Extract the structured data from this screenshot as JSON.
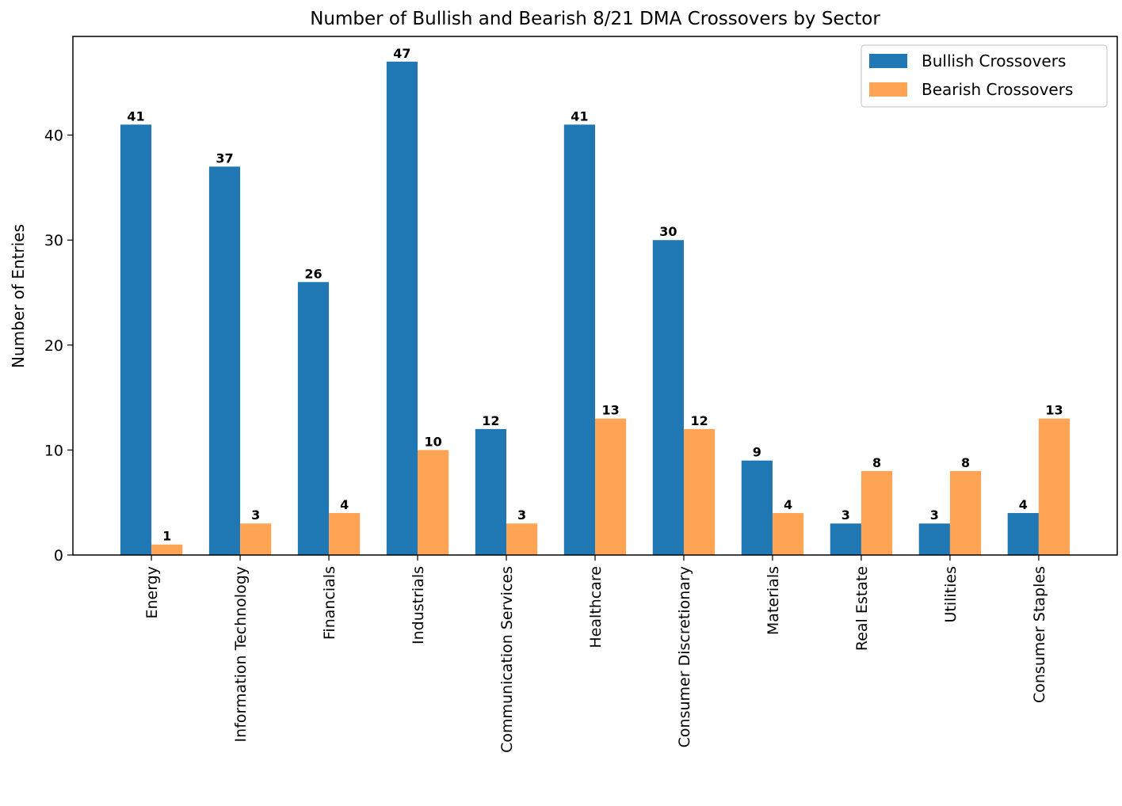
{
  "chart_data": {
    "type": "bar",
    "title": "Number of Bullish and Bearish 8/21 DMA Crossovers by Sector",
    "xlabel": "",
    "ylabel": "Number of Entries",
    "categories": [
      "Energy",
      "Information Technology",
      "Financials",
      "Industrials",
      "Communication Services",
      "Healthcare",
      "Consumer Discretionary",
      "Materials",
      "Real Estate",
      "Utilities",
      "Consumer Staples"
    ],
    "series": [
      {
        "name": "Bullish Crossovers",
        "color": "#1f77b4",
        "values": [
          41,
          37,
          26,
          47,
          12,
          41,
          30,
          9,
          3,
          3,
          4
        ]
      },
      {
        "name": "Bearish Crossovers",
        "color": "#ffa354",
        "values": [
          1,
          3,
          4,
          10,
          3,
          13,
          12,
          4,
          8,
          8,
          13
        ]
      }
    ],
    "ylim": [
      0,
      49.4
    ],
    "yticks": [
      0,
      10,
      20,
      30,
      40
    ],
    "grid": false,
    "legend_position": "top-right",
    "data_labels": true
  }
}
